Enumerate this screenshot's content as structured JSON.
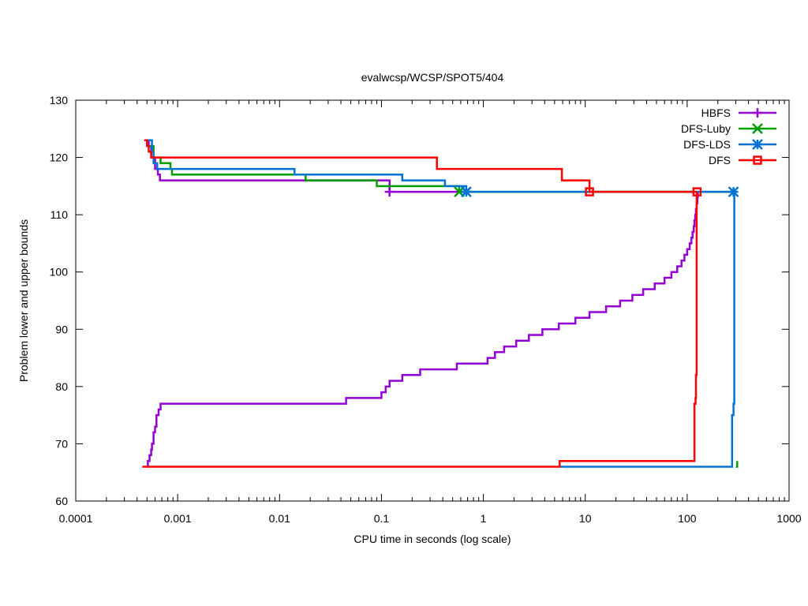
{
  "chart_data": {
    "type": "line",
    "title": "evalwcsp/WCSP/SPOT5/404",
    "xlabel": "CPU time in seconds (log scale)",
    "ylabel": "Problem lower and upper bounds",
    "xscale": "log",
    "xlim": [
      0.0001,
      1000
    ],
    "ylim": [
      60,
      130
    ],
    "x_ticks": [
      0.0001,
      0.001,
      0.01,
      0.1,
      1,
      10,
      100,
      1000
    ],
    "x_tick_labels": [
      "0.0001",
      "0.001",
      "0.01",
      "0.1",
      "1",
      "10",
      "100",
      "1000"
    ],
    "y_ticks": [
      60,
      70,
      80,
      90,
      100,
      110,
      120,
      130
    ],
    "y_tick_labels": [
      "60",
      "70",
      "80",
      "90",
      "100",
      "110",
      "120",
      "130"
    ],
    "grid": false,
    "legend_position": "top-right",
    "series": [
      {
        "name": "HBFS",
        "color": "#9400d3",
        "marker": "plus",
        "upper": [
          [
            0.00048,
            123
          ],
          [
            0.00052,
            122
          ],
          [
            0.00055,
            120
          ],
          [
            0.0006,
            118
          ],
          [
            0.00064,
            117
          ],
          [
            0.00067,
            116
          ],
          [
            0.12,
            116
          ],
          [
            0.12,
            114
          ],
          [
            0.58,
            114
          ]
        ],
        "markers": [
          [
            0.12,
            114
          ]
        ],
        "lower": [
          [
            0.00049,
            66
          ],
          [
            0.00051,
            67
          ],
          [
            0.00053,
            68
          ],
          [
            0.00055,
            69
          ],
          [
            0.00056,
            70
          ],
          [
            0.00058,
            72
          ],
          [
            0.0006,
            73
          ],
          [
            0.00062,
            75
          ],
          [
            0.00065,
            76
          ],
          [
            0.00068,
            77
          ],
          [
            0.045,
            77
          ],
          [
            0.045,
            78
          ],
          [
            0.095,
            78
          ],
          [
            0.1,
            79
          ],
          [
            0.11,
            80
          ],
          [
            0.12,
            81
          ],
          [
            0.16,
            82
          ],
          [
            0.24,
            83
          ],
          [
            0.55,
            84
          ],
          [
            0.6,
            84
          ],
          [
            1.0,
            84
          ],
          [
            1.1,
            85
          ],
          [
            1.3,
            86
          ],
          [
            1.6,
            87
          ],
          [
            2.1,
            88
          ],
          [
            2.8,
            89
          ],
          [
            3.8,
            90
          ],
          [
            5.5,
            91
          ],
          [
            8.0,
            92
          ],
          [
            11,
            93
          ],
          [
            16,
            94
          ],
          [
            22,
            95
          ],
          [
            29,
            96
          ],
          [
            37,
            97
          ],
          [
            48,
            98
          ],
          [
            60,
            99
          ],
          [
            70,
            100
          ],
          [
            80,
            101
          ],
          [
            88,
            102
          ],
          [
            94,
            103
          ],
          [
            100,
            104
          ],
          [
            106,
            105
          ],
          [
            110,
            106
          ],
          [
            113,
            107
          ],
          [
            116,
            108
          ],
          [
            118,
            109
          ],
          [
            120,
            110
          ],
          [
            122,
            111
          ],
          [
            124,
            112
          ],
          [
            126,
            113
          ],
          [
            127,
            114
          ]
        ]
      },
      {
        "name": "DFS-Luby",
        "color": "#009e00",
        "marker": "x",
        "upper": [
          [
            0.00053,
            122
          ],
          [
            0.00058,
            120
          ],
          [
            0.00068,
            119
          ],
          [
            0.00085,
            118
          ],
          [
            0.00088,
            117
          ],
          [
            0.018,
            117
          ],
          [
            0.018,
            116
          ],
          [
            0.09,
            116
          ],
          [
            0.09,
            115
          ],
          [
            0.5,
            115
          ],
          [
            0.58,
            114
          ],
          [
            280,
            114
          ]
        ],
        "markers": [
          [
            0.58,
            114
          ]
        ],
        "lower": [
          [
            300,
            66
          ],
          [
            310,
            67
          ]
        ]
      },
      {
        "name": "DFS-LDS",
        "color": "#0072d6",
        "marker": "star",
        "upper": [
          [
            0.00048,
            123
          ],
          [
            0.00056,
            121
          ],
          [
            0.00058,
            119
          ],
          [
            0.00063,
            118
          ],
          [
            0.014,
            118
          ],
          [
            0.014,
            117
          ],
          [
            0.16,
            117
          ],
          [
            0.16,
            116
          ],
          [
            0.42,
            116
          ],
          [
            0.42,
            115
          ],
          [
            0.6,
            115
          ],
          [
            0.68,
            114
          ],
          [
            285,
            114
          ]
        ],
        "markers": [
          [
            0.68,
            114
          ],
          [
            285,
            114
          ]
        ],
        "lower": [
          [
            5.6,
            66
          ],
          [
            275,
            66
          ],
          [
            276,
            75
          ],
          [
            285,
            77
          ],
          [
            290,
            114
          ]
        ]
      },
      {
        "name": "DFS",
        "color": "#ff0000",
        "marker": "square",
        "upper": [
          [
            0.00047,
            123
          ],
          [
            0.0005,
            122
          ],
          [
            0.00052,
            121
          ],
          [
            0.00055,
            120
          ],
          [
            0.32,
            120
          ],
          [
            0.35,
            118
          ],
          [
            5.9,
            118
          ],
          [
            5.9,
            116
          ],
          [
            10.5,
            116
          ],
          [
            11,
            114
          ],
          [
            125,
            114
          ]
        ],
        "markers": [
          [
            11,
            114
          ],
          [
            125,
            114
          ]
        ],
        "lower": [
          [
            0.00045,
            66
          ],
          [
            5.6,
            66
          ],
          [
            5.6,
            67
          ],
          [
            118,
            67
          ],
          [
            118,
            77
          ],
          [
            121,
            78
          ],
          [
            122,
            82
          ],
          [
            124,
            114
          ]
        ]
      }
    ]
  }
}
